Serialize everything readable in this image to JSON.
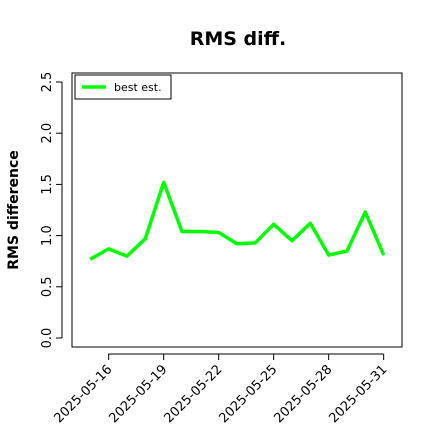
{
  "chart_data": {
    "type": "line",
    "title": "RMS diff.",
    "xlabel": "",
    "ylabel": "RMS difference",
    "x": [
      "2025-05-15",
      "2025-05-16",
      "2025-05-17",
      "2025-05-18",
      "2025-05-19",
      "2025-05-20",
      "2025-05-21",
      "2025-05-22",
      "2025-05-23",
      "2025-05-24",
      "2025-05-25",
      "2025-05-26",
      "2025-05-27",
      "2025-05-28",
      "2025-05-29",
      "2025-05-30",
      "2025-05-31"
    ],
    "series": [
      {
        "name": "best est.",
        "color": "#00ff00",
        "values": [
          0.77,
          0.87,
          0.8,
          0.97,
          1.52,
          1.04,
          1.04,
          1.03,
          0.92,
          0.93,
          1.11,
          0.95,
          1.12,
          0.81,
          0.85,
          1.23,
          0.81
        ]
      }
    ],
    "xticks": [
      "2025-05-16",
      "2025-05-19",
      "2025-05-22",
      "2025-05-25",
      "2025-05-28",
      "2025-05-31"
    ],
    "yticks": [
      "0.0",
      "0.5",
      "1.0",
      "1.5",
      "2.0",
      "2.5"
    ],
    "ylim": [
      0,
      2.6
    ],
    "xlim": [
      "2025-05-14",
      "2025-06-01"
    ],
    "grid": false,
    "legend_position": "top-left"
  }
}
